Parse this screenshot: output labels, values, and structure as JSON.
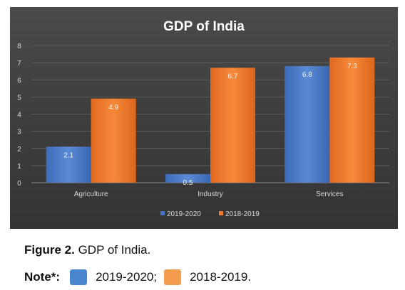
{
  "chart_data": {
    "type": "bar",
    "title": "GDP of India",
    "categories": [
      "Agriculture",
      "Industry",
      "Services"
    ],
    "series": [
      {
        "name": "2019-2020",
        "values": [
          2.1,
          0.5,
          6.8
        ],
        "color": "#4472c4"
      },
      {
        "name": "2018-2019",
        "values": [
          4.9,
          6.7,
          7.3
        ],
        "color": "#ed7d31"
      }
    ],
    "data_labels": [
      [
        "2.1",
        "0.5",
        "6.8"
      ],
      [
        "4.9",
        "6.7",
        "7.3"
      ]
    ],
    "y_ticks": [
      "0",
      "1",
      "2",
      "3",
      "4",
      "5",
      "6",
      "7",
      "8"
    ],
    "ylim": [
      0,
      8
    ],
    "grid": true,
    "legend_position": "bottom"
  },
  "caption": {
    "label": "Figure 2.",
    "text": " GDP of India."
  },
  "note": {
    "label": "Note*:",
    "entries": [
      {
        "text": "2019-2020;",
        "color": "#4a86cf"
      },
      {
        "text": "2018-2019.",
        "color": "#f39c4e"
      }
    ]
  }
}
